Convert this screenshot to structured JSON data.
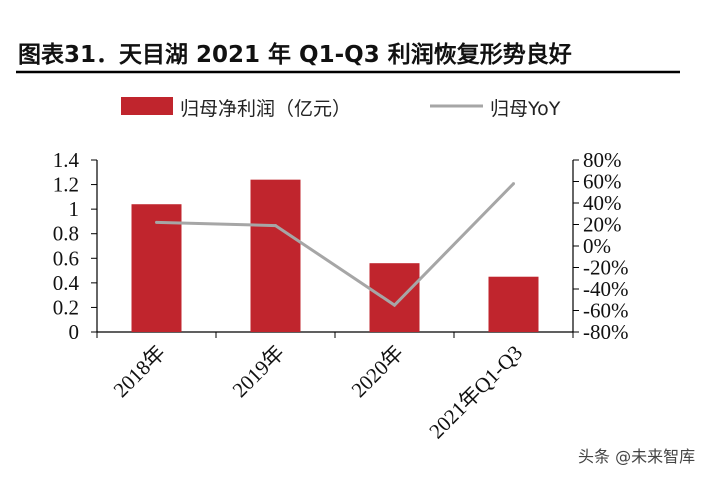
{
  "header": {
    "title": "图表31．天目湖 2021 年 Q1-Q3 利润恢复形势良好"
  },
  "watermark": "头条 @未来智库",
  "colors": {
    "bar": "#c0252d",
    "line": "#a6a6a6",
    "axis": "#000000",
    "title_rule": "#000000"
  },
  "chart_data": {
    "type": "bar",
    "categories": [
      "2018年",
      "2019年",
      "2020年",
      "2021年Q1-Q3"
    ],
    "series": [
      {
        "name": "归母净利润（亿元）",
        "type": "bar",
        "axis": "left",
        "values": [
          1.04,
          1.24,
          0.56,
          0.45
        ]
      },
      {
        "name": "归母YoY",
        "type": "line",
        "axis": "right",
        "values": [
          22,
          19,
          -55,
          58
        ]
      }
    ],
    "left_axis": {
      "ylim": [
        0,
        1.4
      ],
      "ticks": [
        "0",
        "0.2",
        "0.4",
        "0.6",
        "0.8",
        "1",
        "1.2",
        "1.4"
      ]
    },
    "right_axis": {
      "ylim": [
        -80,
        80
      ],
      "ticks": [
        "-80%",
        "-60%",
        "-40%",
        "-20%",
        "0%",
        "20%",
        "40%",
        "60%",
        "80%"
      ]
    },
    "legend_position": "top",
    "grid": false
  }
}
